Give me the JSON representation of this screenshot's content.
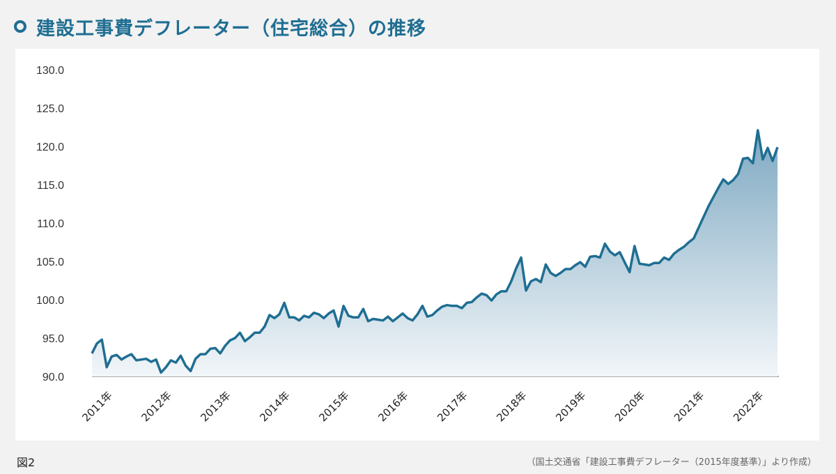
{
  "header": {
    "title": "建設工事費デフレーター（住宅総合）の推移"
  },
  "footer": {
    "figure_label": "図2",
    "source": "（国土交通省「建設工事費デフレーター（2015年度基準）」より作成）"
  },
  "colors": {
    "line": "#1f6e92",
    "area_top": "#7fa9c2",
    "area_bottom": "#f2f6f9",
    "title": "#1f6e92"
  },
  "chart_data": {
    "type": "area",
    "title": "建設工事費デフレーター（住宅総合）の推移",
    "xlabel": "",
    "ylabel": "",
    "ylim": [
      90,
      130
    ],
    "yticks": [
      "90.0",
      "95.0",
      "100.0",
      "105.0",
      "110.0",
      "115.0",
      "120.0",
      "125.0",
      "130.0"
    ],
    "xticks": [
      "2011年",
      "2012年",
      "2013年",
      "2014年",
      "2015年",
      "2016年",
      "2017年",
      "2018年",
      "2019年",
      "2020年",
      "2021年",
      "2022年"
    ],
    "grid": false,
    "legend": "none",
    "x_start": "2011-01",
    "frequency": "monthly",
    "series": [
      {
        "values": [
          93.0,
          94.3,
          94.8,
          91.2,
          92.6,
          92.8,
          92.2,
          92.6,
          92.9,
          92.1,
          92.2,
          92.3,
          91.9,
          92.2,
          90.5,
          91.2,
          92.1,
          91.8,
          92.7,
          91.4,
          90.7,
          92.3,
          92.9,
          92.9,
          93.6,
          93.7,
          93.0,
          94.0,
          94.7,
          95.0,
          95.7,
          94.6,
          95.1,
          95.7,
          95.7,
          96.5,
          98.0,
          97.6,
          98.1,
          99.6,
          97.7,
          97.7,
          97.3,
          97.9,
          97.7,
          98.3,
          98.1,
          97.6,
          98.2,
          98.6,
          96.5,
          99.2,
          97.9,
          97.7,
          97.7,
          98.8,
          97.2,
          97.5,
          97.4,
          97.3,
          97.8,
          97.2,
          97.7,
          98.2,
          97.6,
          97.3,
          98.1,
          99.2,
          97.8,
          98.0,
          98.6,
          99.1,
          99.3,
          99.2,
          99.2,
          98.9,
          99.6,
          99.7,
          100.3,
          100.8,
          100.6,
          99.9,
          100.7,
          101.1,
          101.1,
          102.4,
          104.1,
          105.5,
          101.2,
          102.4,
          102.7,
          102.3,
          104.6,
          103.5,
          103.1,
          103.5,
          104.0,
          104.0,
          104.5,
          104.9,
          104.3,
          105.6,
          105.7,
          105.5,
          107.3,
          106.3,
          105.8,
          106.2,
          104.9,
          103.6,
          107.0,
          104.7,
          104.6,
          104.5,
          104.8,
          104.8,
          105.5,
          105.2,
          106.0,
          106.5,
          106.9,
          107.5,
          108.0,
          109.4,
          110.8,
          112.2,
          113.4,
          114.6,
          115.7,
          115.1,
          115.6,
          116.4,
          118.4,
          118.5,
          117.8,
          122.1,
          118.3,
          119.8,
          118.1,
          119.9
        ]
      }
    ]
  }
}
